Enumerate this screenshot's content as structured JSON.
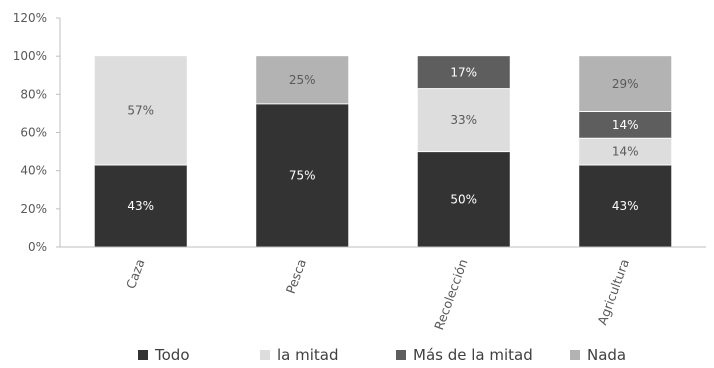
{
  "chart_data": {
    "type": "bar",
    "stacked": true,
    "categories": [
      "Caza",
      "Pesca",
      "Recolección",
      "Agricultura"
    ],
    "series": [
      {
        "name": "Todo",
        "color": "#333333",
        "values": [
          43,
          75,
          50,
          43
        ],
        "labels": [
          "43%",
          "75%",
          "50%",
          "43%"
        ]
      },
      {
        "name": "la mitad",
        "color": "#dddddd",
        "values": [
          57,
          0,
          33,
          14
        ],
        "labels": [
          "57%",
          "",
          "33%",
          "14%"
        ]
      },
      {
        "name": "Más de la mitad",
        "color": "#5e5e5e",
        "values": [
          0,
          0,
          17,
          14
        ],
        "labels": [
          "",
          "",
          "17%",
          "14%"
        ]
      },
      {
        "name": "Nada",
        "color": "#b3b3b3",
        "values": [
          0,
          25,
          0,
          29
        ],
        "labels": [
          "",
          "25%",
          "",
          "29%"
        ]
      }
    ],
    "yticks": [
      "0%",
      "20%",
      "40%",
      "60%",
      "80%",
      "100%",
      "120%"
    ],
    "ylim": [
      0,
      120
    ],
    "grid": false,
    "legend_position": "bottom"
  }
}
